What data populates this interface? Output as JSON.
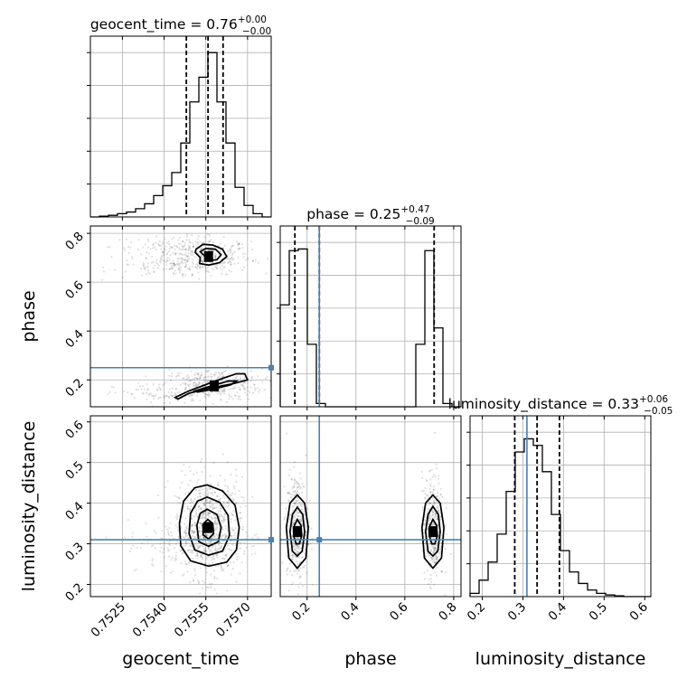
{
  "chart_data": {
    "type": "corner",
    "parameters": [
      "geocent_time",
      "phase",
      "luminosity_distance"
    ],
    "titles": [
      {
        "param": "geocent_time",
        "median": "0.76",
        "plus": "+0.00",
        "minus": "−0.00"
      },
      {
        "param": "phase",
        "median": "0.25",
        "plus": "+0.47",
        "minus": "−0.09"
      },
      {
        "param": "luminosity_distance",
        "median": "0.33",
        "plus": "+0.06",
        "minus": "−0.05"
      }
    ],
    "ranges": {
      "geocent_time": [
        0.75135,
        0.75785
      ],
      "phase": [
        0.09,
        0.83
      ],
      "luminosity_distance": [
        0.17,
        0.615
      ]
    },
    "ticks": {
      "geocent_time": [
        {
          "v": 0.7525,
          "label": "0.7525"
        },
        {
          "v": 0.754,
          "label": "0.7540"
        },
        {
          "v": 0.7555,
          "label": "0.7555"
        },
        {
          "v": 0.757,
          "label": "0.7570"
        }
      ],
      "phase": [
        {
          "v": 0.2,
          "label": "0.2"
        },
        {
          "v": 0.4,
          "label": "0.4"
        },
        {
          "v": 0.6,
          "label": "0.6"
        },
        {
          "v": 0.8,
          "label": "0.8"
        }
      ],
      "luminosity_distance": [
        {
          "v": 0.2,
          "label": "0.2"
        },
        {
          "v": 0.3,
          "label": "0.3"
        },
        {
          "v": 0.4,
          "label": "0.4"
        },
        {
          "v": 0.5,
          "label": "0.5"
        },
        {
          "v": 0.6,
          "label": "0.6"
        }
      ]
    },
    "truths": {
      "phase": 0.25,
      "luminosity_distance": 0.31
    },
    "quantiles": {
      "geocent_time": [
        0.7548,
        0.75558,
        0.75612
      ],
      "phase": [
        0.15,
        0.25,
        0.72
      ],
      "luminosity_distance": [
        0.28,
        0.335,
        0.39
      ]
    },
    "histograms": {
      "geocent_time": {
        "edges": [
          0.75135,
          0.751675,
          0.752,
          0.752325,
          0.75265,
          0.752975,
          0.7533,
          0.753625,
          0.75395,
          0.754275,
          0.7546,
          0.754925,
          0.75525,
          0.755575,
          0.7559,
          0.756225,
          0.75655,
          0.756875,
          0.7572,
          0.757525,
          0.75785
        ],
        "counts": [
          0.0,
          0.005,
          0.01,
          0.02,
          0.03,
          0.05,
          0.08,
          0.13,
          0.19,
          0.27,
          0.45,
          0.7,
          0.85,
          1.0,
          0.7,
          0.45,
          0.18,
          0.07,
          0.02,
          0.0
        ]
      },
      "phase": {
        "edges": [
          0.09,
          0.127,
          0.164,
          0.201,
          0.238,
          0.275,
          0.312,
          0.349,
          0.386,
          0.423,
          0.46,
          0.497,
          0.534,
          0.571,
          0.608,
          0.645,
          0.682,
          0.719,
          0.756,
          0.793,
          0.83
        ],
        "counts": [
          0.62,
          0.95,
          0.96,
          0.38,
          0.02,
          0.0,
          0.0,
          0.0,
          0.0,
          0.0,
          0.0,
          0.0,
          0.0,
          0.0,
          0.0,
          0.38,
          0.95,
          0.48,
          0.02,
          0.0
        ]
      },
      "luminosity_distance": {
        "edges": [
          0.17,
          0.19225,
          0.2145,
          0.23675,
          0.259,
          0.28125,
          0.3035,
          0.32575,
          0.348,
          0.37025,
          0.3925,
          0.41475,
          0.437,
          0.45925,
          0.4815,
          0.50375,
          0.526,
          0.54825,
          0.5705,
          0.59275,
          0.615
        ],
        "counts": [
          0.02,
          0.1,
          0.21,
          0.38,
          0.64,
          0.88,
          0.96,
          0.92,
          0.76,
          0.5,
          0.28,
          0.15,
          0.08,
          0.04,
          0.02,
          0.01,
          0.005,
          0.0,
          0.0,
          0.0
        ]
      }
    },
    "contours_2d": [
      {
        "x": "geocent_time",
        "y": "phase",
        "levels": [
          [
            [
              0.75515,
              0.735
            ],
            [
              0.7554,
              0.755
            ],
            [
              0.75575,
              0.752
            ],
            [
              0.7561,
              0.735
            ],
            [
              0.75625,
              0.705
            ],
            [
              0.756,
              0.68
            ],
            [
              0.7556,
              0.67
            ],
            [
              0.75528,
              0.676
            ],
            [
              0.7553,
              0.7
            ],
            [
              0.75512,
              0.722
            ],
            [
              0.75515,
              0.735
            ]
          ],
          [
            [
              0.7553,
              0.725
            ],
            [
              0.7555,
              0.738
            ],
            [
              0.75585,
              0.735
            ],
            [
              0.75605,
              0.712
            ],
            [
              0.7559,
              0.692
            ],
            [
              0.7556,
              0.688
            ],
            [
              0.75545,
              0.708
            ],
            [
              0.7553,
              0.725
            ]
          ],
          [
            [
              0.7544,
              0.128
            ],
            [
              0.7549,
              0.155
            ],
            [
              0.7556,
              0.185
            ],
            [
              0.7562,
              0.21
            ],
            [
              0.7566,
              0.225
            ],
            [
              0.7569,
              0.225
            ],
            [
              0.757,
              0.2
            ],
            [
              0.7565,
              0.185
            ],
            [
              0.7556,
              0.165
            ],
            [
              0.7549,
              0.145
            ],
            [
              0.7545,
              0.122
            ],
            [
              0.7544,
              0.128
            ]
          ],
          [
            [
              0.7551,
              0.155
            ],
            [
              0.7557,
              0.175
            ],
            [
              0.7563,
              0.195
            ],
            [
              0.7566,
              0.195
            ],
            [
              0.7564,
              0.18
            ],
            [
              0.7557,
              0.16
            ],
            [
              0.7552,
              0.15
            ],
            [
              0.7551,
              0.155
            ]
          ]
        ],
        "peaks": [
          [
            0.7556,
            0.705
          ],
          [
            0.7558,
            0.175
          ]
        ]
      },
      {
        "x": "geocent_time",
        "y": "luminosity_distance",
        "levels": [
          [
            [
              0.75555,
              0.445
            ],
            [
              0.7561,
              0.43
            ],
            [
              0.75655,
              0.395
            ],
            [
              0.7567,
              0.34
            ],
            [
              0.7566,
              0.285
            ],
            [
              0.75625,
              0.255
            ],
            [
              0.7556,
              0.245
            ],
            [
              0.75495,
              0.258
            ],
            [
              0.7546,
              0.295
            ],
            [
              0.75455,
              0.35
            ],
            [
              0.7547,
              0.405
            ],
            [
              0.7551,
              0.438
            ],
            [
              0.75555,
              0.445
            ]
          ],
          [
            [
              0.75555,
              0.415
            ],
            [
              0.756,
              0.402
            ],
            [
              0.7563,
              0.37
            ],
            [
              0.75635,
              0.32
            ],
            [
              0.7561,
              0.282
            ],
            [
              0.7556,
              0.272
            ],
            [
              0.7551,
              0.285
            ],
            [
              0.7549,
              0.325
            ],
            [
              0.75495,
              0.375
            ],
            [
              0.7552,
              0.405
            ],
            [
              0.75555,
              0.415
            ]
          ],
          [
            [
              0.75555,
              0.385
            ],
            [
              0.7559,
              0.372
            ],
            [
              0.75605,
              0.34
            ],
            [
              0.75595,
              0.305
            ],
            [
              0.7556,
              0.294
            ],
            [
              0.75525,
              0.305
            ],
            [
              0.75518,
              0.345
            ],
            [
              0.7553,
              0.375
            ],
            [
              0.75555,
              0.385
            ]
          ],
          [
            [
              0.75557,
              0.36
            ],
            [
              0.75575,
              0.35
            ],
            [
              0.75578,
              0.325
            ],
            [
              0.7556,
              0.312
            ],
            [
              0.7554,
              0.322
            ],
            [
              0.7554,
              0.348
            ],
            [
              0.75557,
              0.36
            ]
          ]
        ],
        "peaks": [
          [
            0.75558,
            0.34
          ]
        ]
      },
      {
        "x": "phase",
        "y": "luminosity_distance",
        "levels": [
          [
            [
              0.16,
              0.42
            ],
            [
              0.19,
              0.4
            ],
            [
              0.205,
              0.34
            ],
            [
              0.195,
              0.265
            ],
            [
              0.16,
              0.24
            ],
            [
              0.125,
              0.265
            ],
            [
              0.115,
              0.34
            ],
            [
              0.13,
              0.4
            ],
            [
              0.16,
              0.42
            ]
          ],
          [
            [
              0.16,
              0.39
            ],
            [
              0.182,
              0.372
            ],
            [
              0.19,
              0.33
            ],
            [
              0.18,
              0.282
            ],
            [
              0.16,
              0.27
            ],
            [
              0.14,
              0.282
            ],
            [
              0.13,
              0.33
            ],
            [
              0.14,
              0.372
            ],
            [
              0.16,
              0.39
            ]
          ],
          [
            [
              0.16,
              0.36
            ],
            [
              0.175,
              0.345
            ],
            [
              0.178,
              0.32
            ],
            [
              0.168,
              0.3
            ],
            [
              0.155,
              0.3
            ],
            [
              0.145,
              0.32
            ],
            [
              0.148,
              0.345
            ],
            [
              0.16,
              0.36
            ]
          ],
          [
            [
              0.715,
              0.42
            ],
            [
              0.745,
              0.4
            ],
            [
              0.76,
              0.34
            ],
            [
              0.75,
              0.265
            ],
            [
              0.715,
              0.24
            ],
            [
              0.68,
              0.265
            ],
            [
              0.67,
              0.34
            ],
            [
              0.685,
              0.4
            ],
            [
              0.715,
              0.42
            ]
          ],
          [
            [
              0.715,
              0.392
            ],
            [
              0.737,
              0.372
            ],
            [
              0.745,
              0.33
            ],
            [
              0.735,
              0.282
            ],
            [
              0.715,
              0.27
            ],
            [
              0.695,
              0.282
            ],
            [
              0.685,
              0.33
            ],
            [
              0.695,
              0.372
            ],
            [
              0.715,
              0.392
            ]
          ],
          [
            [
              0.715,
              0.36
            ],
            [
              0.73,
              0.345
            ],
            [
              0.733,
              0.32
            ],
            [
              0.723,
              0.3
            ],
            [
              0.71,
              0.3
            ],
            [
              0.7,
              0.32
            ],
            [
              0.703,
              0.345
            ],
            [
              0.715,
              0.36
            ]
          ]
        ],
        "peaks": [
          [
            0.16,
            0.33
          ],
          [
            0.715,
            0.33
          ]
        ]
      }
    ],
    "scatter_clouds": [
      {
        "x": "geocent_time",
        "y": "phase",
        "blobs": [
          [
            0.7555,
            0.705,
            0.0008,
            0.035,
            260
          ],
          [
            0.7545,
            0.745,
            0.0012,
            0.022,
            120
          ],
          [
            0.7545,
            0.665,
            0.0012,
            0.022,
            120
          ],
          [
            0.7557,
            0.18,
            0.0009,
            0.032,
            320
          ],
          [
            0.754,
            0.14,
            0.0009,
            0.022,
            80
          ]
        ]
      },
      {
        "x": "geocent_time",
        "y": "luminosity_distance",
        "blobs": [
          [
            0.7556,
            0.34,
            0.0006,
            0.062,
            760
          ],
          [
            0.7548,
            0.3,
            0.0011,
            0.03,
            120
          ]
        ]
      },
      {
        "x": "phase",
        "y": "luminosity_distance",
        "blobs": [
          [
            0.16,
            0.34,
            0.022,
            0.065,
            380
          ],
          [
            0.715,
            0.34,
            0.022,
            0.065,
            380
          ]
        ]
      }
    ],
    "grid": true
  }
}
